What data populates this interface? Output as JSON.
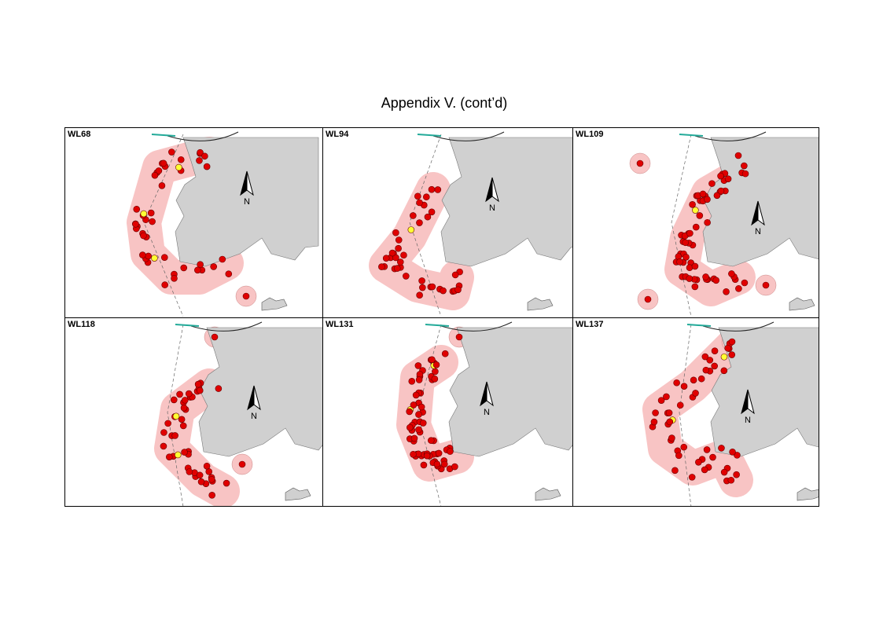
{
  "title": "Appendix V.  (cont’d)",
  "panels": [
    {
      "label": "WL68",
      "north": "N"
    },
    {
      "label": "WL94",
      "north": "N"
    },
    {
      "label": "WL109",
      "north": "N"
    },
    {
      "label": "WL118",
      "north": "N"
    },
    {
      "label": "WL131",
      "north": "N"
    },
    {
      "label": "WL137",
      "north": "N"
    }
  ]
}
